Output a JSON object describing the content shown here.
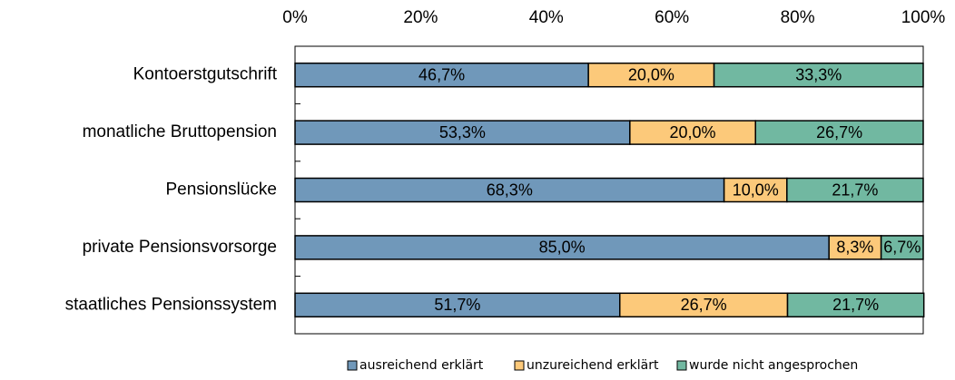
{
  "chart_data": {
    "type": "stacked_bar_horizontal",
    "categories": [
      "Kontoerstgutschrift",
      "monatliche Bruttopension",
      "Pensionslücke",
      "private Pensionsvorsorge",
      "staatliches Pensionssystem"
    ],
    "series": [
      {
        "name": "ausreichend erklärt",
        "color": "#7098ba",
        "values": [
          46.7,
          53.3,
          68.3,
          85.0,
          51.7
        ],
        "value_labels": [
          "46,7%",
          "53,3%",
          "68,3%",
          "85,0%",
          "51,7%"
        ]
      },
      {
        "name": "unzureichend erklärt",
        "color": "#fcc97a",
        "values": [
          20.0,
          20.0,
          10.0,
          8.3,
          26.7
        ],
        "value_labels": [
          "20,0%",
          "20,0%",
          "10,0%",
          "8,3%",
          "26,7%"
        ]
      },
      {
        "name": "wurde nicht angesprochen",
        "color": "#71b8a1",
        "values": [
          33.3,
          26.7,
          21.7,
          6.7,
          21.7
        ],
        "value_labels": [
          "33,3%",
          "26,7%",
          "21,7%",
          "6,7%",
          "21,7%"
        ]
      }
    ],
    "xlim": [
      0,
      100
    ],
    "xticks": [
      {
        "value": 0,
        "label": "0%"
      },
      {
        "value": 20,
        "label": "20%"
      },
      {
        "value": 40,
        "label": "40%"
      },
      {
        "value": 60,
        "label": "60%"
      },
      {
        "value": 80,
        "label": "80%"
      },
      {
        "value": 100,
        "label": "100%"
      }
    ],
    "grid": false
  }
}
